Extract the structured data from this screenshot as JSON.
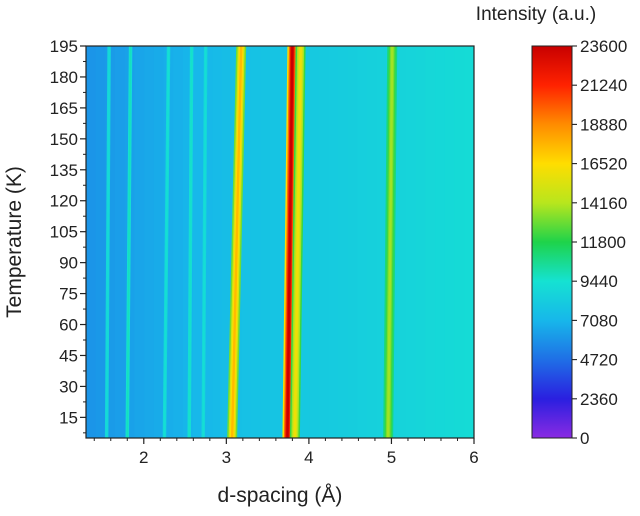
{
  "chart_data": {
    "type": "heatmap",
    "xlabel": "d-spacing (Å)",
    "ylabel": "Temperature (K)",
    "colorbar_label": "Intensity (a.u.)",
    "xlim": [
      1.3,
      6.0
    ],
    "ylim": [
      5,
      195
    ],
    "x_ticks": [
      2,
      3,
      4,
      5,
      6
    ],
    "y_ticks": [
      15,
      30,
      45,
      60,
      75,
      90,
      105,
      120,
      135,
      150,
      165,
      180,
      195
    ],
    "colorbar_range": [
      0,
      23600
    ],
    "colorbar_ticks": [
      0,
      2360,
      4720,
      7080,
      9440,
      11800,
      14160,
      16520,
      18880,
      21240,
      23600
    ],
    "colormap": [
      "#8a2be2",
      "#2a1fe0",
      "#1f6fe6",
      "#17b7ea",
      "#15e2d2",
      "#1ed34a",
      "#b8e61d",
      "#ffdd00",
      "#ff8c00",
      "#ff2200",
      "#c80000"
    ],
    "background_intensity": 7600,
    "peaks": [
      {
        "d_low_T": 1.55,
        "d_high_T": 1.58,
        "intensity": 9000
      },
      {
        "d_low_T": 1.8,
        "d_high_T": 1.84,
        "intensity": 9800
      },
      {
        "d_low_T": 2.25,
        "d_high_T": 2.3,
        "intensity": 9300
      },
      {
        "d_low_T": 2.55,
        "d_high_T": 2.58,
        "intensity": 9600
      },
      {
        "d_low_T": 2.72,
        "d_high_T": 2.75,
        "intensity": 9200
      },
      {
        "d_low_T": 3.07,
        "d_high_T": 3.18,
        "intensity": 17500
      },
      {
        "d_low_T": 3.74,
        "d_high_T": 3.8,
        "intensity": 23600
      },
      {
        "d_low_T": 3.83,
        "d_high_T": 3.9,
        "intensity": 16000
      },
      {
        "d_low_T": 4.96,
        "d_high_T": 5.01,
        "intensity": 13800
      }
    ]
  }
}
